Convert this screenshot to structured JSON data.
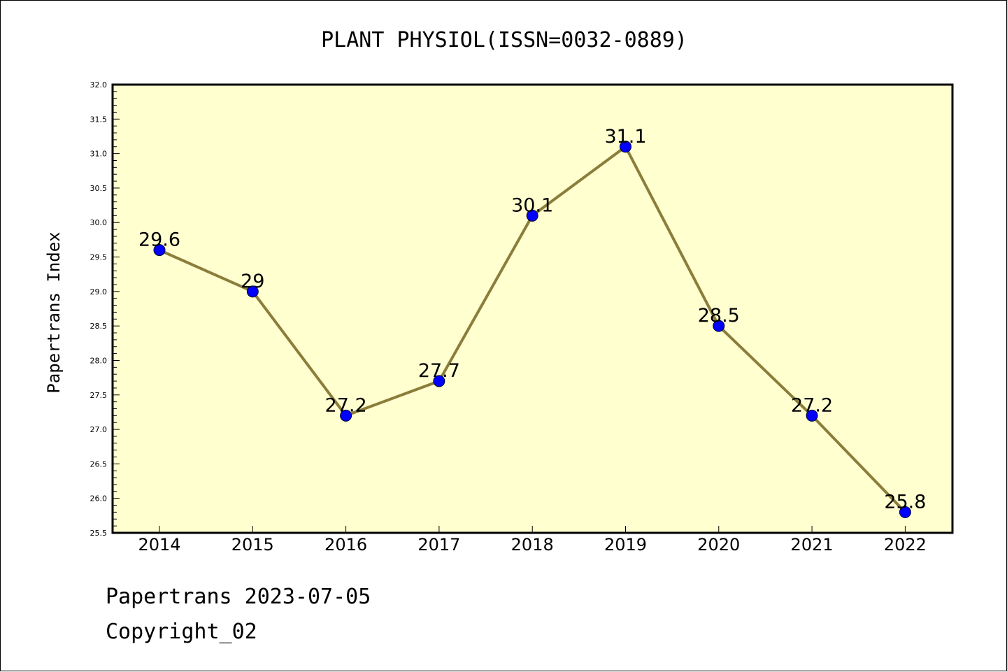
{
  "chart_data": {
    "type": "line",
    "title": "PLANT PHYSIOL(ISSN=0032-0889)",
    "ylabel": "Papertrans Index",
    "xlabel": "",
    "categories": [
      "2014",
      "2015",
      "2016",
      "2017",
      "2018",
      "2019",
      "2020",
      "2021",
      "2022"
    ],
    "series": [
      {
        "values": [
          29.6,
          29.0,
          27.2,
          27.7,
          30.1,
          31.1,
          28.5,
          27.2,
          25.8
        ],
        "labels": [
          "29.6",
          "29",
          "27.2",
          "27.7",
          "30.1",
          "31.1",
          "28.5",
          "27.2",
          "25.8"
        ]
      }
    ],
    "ylim": [
      25.5,
      32.0
    ],
    "ytick_step": 0.5,
    "yminor_step": 0.1,
    "grid": false,
    "colors": {
      "plot_background": "#ffffd0",
      "line": "#8b7d3a",
      "marker": "#0000ff"
    }
  },
  "footer": {
    "line1": "Papertrans 2023-07-05",
    "line2": "Copyright_02"
  }
}
